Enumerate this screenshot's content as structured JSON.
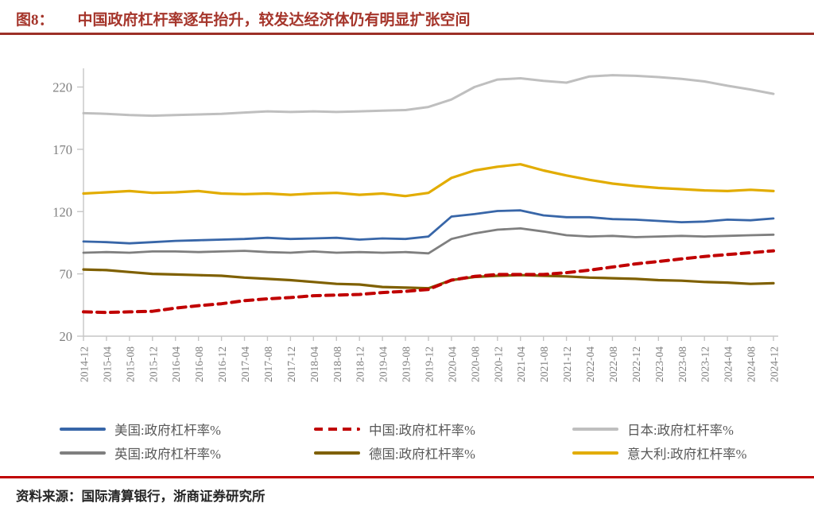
{
  "header": {
    "figure_label": "图8：",
    "title": "中国政府杠杆率逐年抬升，较发达经济体仍有明显扩张空间"
  },
  "footer": {
    "source": "资料来源：国际清算银行，浙商证券研究所"
  },
  "colors": {
    "title_red": "#A5352B",
    "title_rule_red": "#9C2F27",
    "bottom_rule_red": "#C00000",
    "axis_gray": "#C6C6C6",
    "tick_label_gray": "#7F7F7F",
    "legend_text_gray": "#595959"
  },
  "chart_data": {
    "type": "line",
    "title": "",
    "xlabel": "",
    "ylabel": "",
    "grid": false,
    "legend_position": "bottom",
    "ylim": [
      20,
      235
    ],
    "yticks": [
      20,
      70,
      120,
      170,
      220
    ],
    "x": [
      "2014-12",
      "2015-04",
      "2015-08",
      "2015-12",
      "2016-04",
      "2016-08",
      "2016-12",
      "2017-04",
      "2017-08",
      "2017-12",
      "2018-04",
      "2018-08",
      "2018-12",
      "2019-04",
      "2019-08",
      "2019-12",
      "2020-04",
      "2020-08",
      "2020-12",
      "2021-04",
      "2021-08",
      "2021-12",
      "2022-04",
      "2022-08",
      "2022-12",
      "2023-04",
      "2023-08",
      "2023-12",
      "2024-04",
      "2024-08",
      "2024-12"
    ],
    "series": [
      {
        "name": "美国:政府杠杆率%",
        "color": "#3866A8",
        "width": 2.8,
        "dash": null,
        "values": [
          96,
          95.5,
          94.5,
          95.5,
          96.5,
          97,
          97.5,
          98,
          99,
          98,
          98.5,
          99,
          97.5,
          98.5,
          98,
          100,
          116,
          118,
          120.5,
          121,
          117,
          115.5,
          115.5,
          114,
          113.5,
          112.5,
          111.5,
          112,
          113.5,
          113,
          114.5
        ]
      },
      {
        "name": "中国:政府杠杆率%",
        "color": "#C00000",
        "width": 4,
        "dash": "10 7",
        "values": [
          39.5,
          39,
          39.5,
          40,
          42.5,
          44.5,
          46,
          48.5,
          50,
          51,
          52.5,
          53,
          53.5,
          55,
          56,
          57.5,
          65,
          68,
          69.5,
          69.5,
          69.5,
          71,
          73,
          75.5,
          78,
          80,
          82,
          84,
          85.5,
          87,
          88.5
        ]
      },
      {
        "name": "日本:政府杠杆率%",
        "color": "#BFBFBF",
        "width": 3,
        "dash": null,
        "values": [
          199,
          198.5,
          197.5,
          197,
          197.5,
          198,
          198.5,
          199.5,
          200.5,
          200,
          200.5,
          200,
          200.5,
          201,
          201.5,
          204,
          210,
          220,
          226,
          227,
          225,
          223.5,
          228.5,
          229.5,
          229,
          228,
          226.5,
          224.5,
          221,
          218,
          214.5
        ]
      },
      {
        "name": "英国:政府杠杆率%",
        "color": "#7F7F7F",
        "width": 2.8,
        "dash": null,
        "values": [
          87,
          87.5,
          87,
          88,
          88,
          87.5,
          88,
          88.5,
          87.5,
          87,
          88,
          87,
          87.5,
          87,
          87.5,
          86.5,
          98,
          102.5,
          105.5,
          106.5,
          104,
          101,
          100,
          100.5,
          99.5,
          100,
          100.5,
          100,
          100.5,
          101,
          101.5
        ]
      },
      {
        "name": "德国:政府杠杆率%",
        "color": "#7F6000",
        "width": 3.2,
        "dash": null,
        "values": [
          73.5,
          73,
          71.5,
          70,
          69.5,
          69,
          68.5,
          67,
          66,
          65,
          63.5,
          62,
          61.5,
          59.5,
          59,
          58.5,
          65,
          67.5,
          68.5,
          69,
          68.5,
          68,
          67,
          66.5,
          66,
          65,
          64.5,
          63.5,
          63,
          62,
          62.5
        ]
      },
      {
        "name": "意大利:政府杠杆率%",
        "color": "#E2AC00",
        "width": 3.2,
        "dash": null,
        "values": [
          134.5,
          135.5,
          136.5,
          135,
          135.5,
          136.5,
          134.5,
          134,
          134.5,
          133.5,
          134.5,
          135,
          133.5,
          134.5,
          132.5,
          135,
          147,
          153,
          156,
          158,
          153,
          149,
          145.5,
          142.5,
          140.5,
          139,
          138,
          137,
          136.5,
          137.5,
          136.5
        ]
      }
    ]
  }
}
